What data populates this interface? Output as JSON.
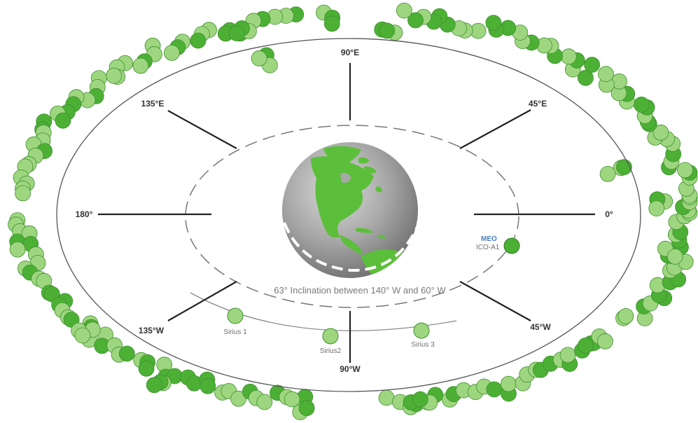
{
  "direction_labels": {
    "north": "90°E",
    "north_east": "45°E",
    "north_west": "135°E",
    "east": "0°",
    "west": "180°",
    "south": "90°W",
    "south_east": "45°W",
    "south_west": "135°W"
  },
  "inclination_caption": "63° Inclination between 140° W and 60° W",
  "meo": {
    "category": "MEO",
    "name": "ICO-A1"
  },
  "sirius": [
    "Sirius 1",
    "Sirius2",
    "Sirius 3"
  ],
  "colors": {
    "sat_light": "#9ed67f",
    "sat_dark": "#4cb035",
    "sat_stroke": "#3e8f2e",
    "orbit": "#444444",
    "globe_gray": "#9a9a9a",
    "land": "#5cbf3b",
    "meo_blue": "#4a7cc4"
  }
}
